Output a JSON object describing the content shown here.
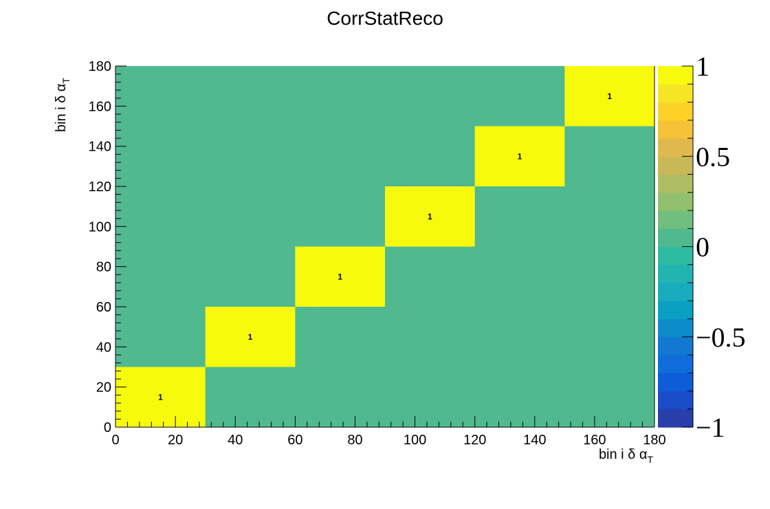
{
  "chart_data": {
    "type": "heatmap",
    "title": "CorrStatReco",
    "xlabel_main": "bin i δ α",
    "xlabel_sub": "T",
    "ylabel_main": "bin i δ α",
    "ylabel_sub": "T",
    "xlim": [
      0,
      180
    ],
    "ylim": [
      0,
      180
    ],
    "x_ticks": [
      "0",
      "20",
      "40",
      "60",
      "80",
      "100",
      "120",
      "140",
      "160",
      "180"
    ],
    "y_ticks": [
      "0",
      "20",
      "40",
      "60",
      "80",
      "100",
      "120",
      "140",
      "160",
      "180"
    ],
    "background_value": 0,
    "blocks": [
      {
        "x": [
          0,
          30
        ],
        "y": [
          0,
          30
        ],
        "value": 1,
        "label": "1"
      },
      {
        "x": [
          30,
          60
        ],
        "y": [
          30,
          60
        ],
        "value": 1,
        "label": "1"
      },
      {
        "x": [
          60,
          90
        ],
        "y": [
          60,
          90
        ],
        "value": 1,
        "label": "1"
      },
      {
        "x": [
          90,
          120
        ],
        "y": [
          90,
          120
        ],
        "value": 1,
        "label": "1"
      },
      {
        "x": [
          120,
          150
        ],
        "y": [
          120,
          150
        ],
        "value": 1,
        "label": "1"
      },
      {
        "x": [
          150,
          180
        ],
        "y": [
          150,
          180
        ],
        "value": 1,
        "label": "1"
      }
    ],
    "colorbar": {
      "range": [
        -1,
        1
      ],
      "tick_labels": [
        "1",
        "0.5",
        "0",
        "−0.5",
        "−1"
      ],
      "tick_values": [
        1,
        0.5,
        0,
        -0.5,
        -1
      ],
      "colors_low_to_high": [
        "#283ea8",
        "#1a4cc8",
        "#0e5cd8",
        "#0f6cda",
        "#1278d2",
        "#0d8ac8",
        "#09a0c4",
        "#18acbe",
        "#22b4b0",
        "#2ebba4",
        "#50b990",
        "#70bf7e",
        "#92bf6e",
        "#aebc62",
        "#cab858",
        "#e0b94e",
        "#f5c238",
        "#fdd228",
        "#f6e525",
        "#f8fa0d"
      ]
    },
    "colors": {
      "zero": "#50b990",
      "one": "#f8fa0d"
    }
  }
}
